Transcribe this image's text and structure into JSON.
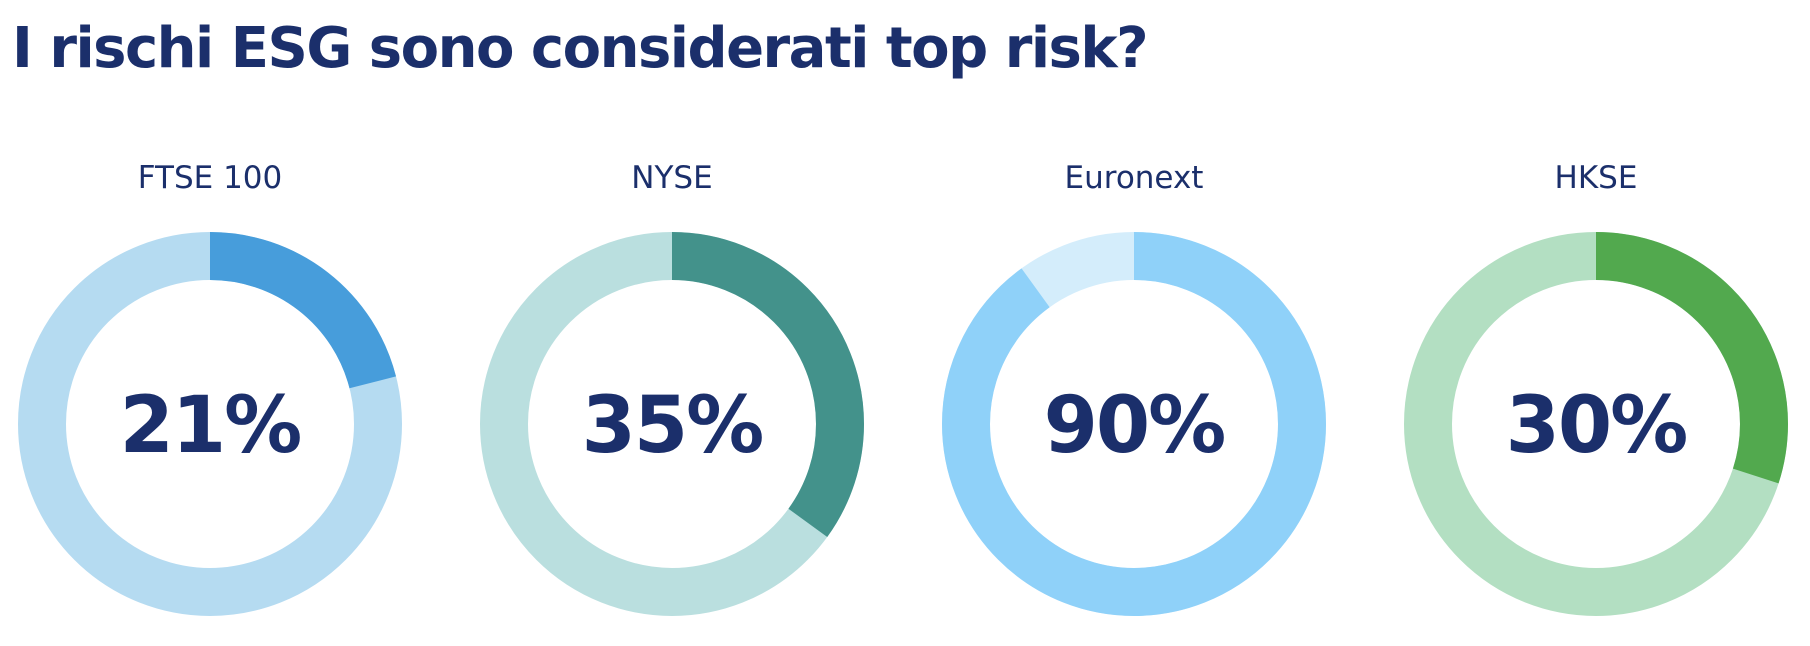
{
  "title": "I rischi ESG sono considerati top risk?",
  "chart_data": [
    {
      "type": "pie",
      "title": "FTSE 100",
      "value": 21,
      "label": "21%",
      "colors": {
        "filled": "#479ddb",
        "remainder": "#b5dbf1"
      }
    },
    {
      "type": "pie",
      "title": "NYSE",
      "value": 35,
      "label": "35%",
      "colors": {
        "filled": "#43928b",
        "remainder": "#badfdf"
      }
    },
    {
      "type": "pie",
      "title": "Euronext",
      "value": 90,
      "label": "90%",
      "colors": {
        "filled": "#8fd1f9",
        "remainder": "#d4edfb"
      }
    },
    {
      "type": "pie",
      "title": "HKSE",
      "value": 30,
      "label": "30%",
      "colors": {
        "filled": "#52a94e",
        "remainder": "#b3dfc2"
      }
    }
  ]
}
